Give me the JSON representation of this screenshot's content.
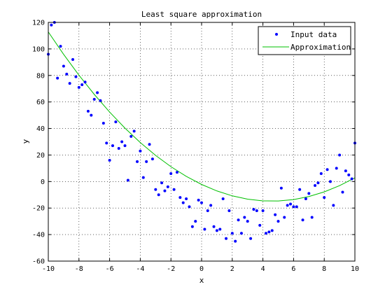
{
  "chart_data": {
    "type": "scatter",
    "title": "Least square approximation",
    "xlabel": "x",
    "ylabel": "y",
    "xlim": [
      -10,
      10
    ],
    "ylim": [
      -60,
      120
    ],
    "xticks": [
      -10,
      -8,
      -6,
      -4,
      -2,
      0,
      2,
      4,
      6,
      8,
      10
    ],
    "yticks": [
      -60,
      -40,
      -20,
      0,
      20,
      40,
      60,
      80,
      100,
      120
    ],
    "grid": true,
    "legend_position": "top-right",
    "series": [
      {
        "name": "Input data",
        "kind": "points",
        "color": "#0000ff",
        "marker": "dot",
        "points": [
          [
            -10.0,
            96
          ],
          [
            -9.8,
            118
          ],
          [
            -9.6,
            120
          ],
          [
            -9.4,
            78
          ],
          [
            -9.2,
            102
          ],
          [
            -9.0,
            87
          ],
          [
            -8.8,
            81
          ],
          [
            -8.6,
            74
          ],
          [
            -8.4,
            92
          ],
          [
            -8.2,
            79
          ],
          [
            -8.0,
            71
          ],
          [
            -7.8,
            73
          ],
          [
            -7.6,
            75
          ],
          [
            -7.4,
            53
          ],
          [
            -7.2,
            50
          ],
          [
            -7.0,
            62
          ],
          [
            -6.8,
            67
          ],
          [
            -6.6,
            61
          ],
          [
            -6.4,
            44
          ],
          [
            -6.2,
            29
          ],
          [
            -6.0,
            16
          ],
          [
            -5.8,
            27
          ],
          [
            -5.6,
            45
          ],
          [
            -5.4,
            25
          ],
          [
            -5.2,
            30
          ],
          [
            -5.0,
            27
          ],
          [
            -4.8,
            1
          ],
          [
            -4.6,
            34
          ],
          [
            -4.4,
            38
          ],
          [
            -4.2,
            15
          ],
          [
            -4.0,
            23
          ],
          [
            -3.8,
            3
          ],
          [
            -3.6,
            15
          ],
          [
            -3.4,
            28
          ],
          [
            -3.2,
            17
          ],
          [
            -3.0,
            -6
          ],
          [
            -2.8,
            -10
          ],
          [
            -2.6,
            -1
          ],
          [
            -2.4,
            -7
          ],
          [
            -2.2,
            -4
          ],
          [
            -2.0,
            6
          ],
          [
            -1.8,
            -6
          ],
          [
            -1.6,
            7
          ],
          [
            -1.4,
            -12
          ],
          [
            -1.2,
            -16
          ],
          [
            -1.0,
            -13
          ],
          [
            -0.8,
            -19
          ],
          [
            -0.6,
            -34
          ],
          [
            -0.4,
            -30
          ],
          [
            -0.2,
            -14
          ],
          [
            0.0,
            -16
          ],
          [
            0.2,
            -36
          ],
          [
            0.4,
            -22
          ],
          [
            0.6,
            -18
          ],
          [
            0.8,
            -34
          ],
          [
            1.0,
            -37
          ],
          [
            1.2,
            -36
          ],
          [
            1.4,
            -13
          ],
          [
            1.6,
            -43
          ],
          [
            1.8,
            -22
          ],
          [
            2.0,
            -39
          ],
          [
            2.2,
            -45
          ],
          [
            2.4,
            -29
          ],
          [
            2.6,
            -39
          ],
          [
            2.8,
            -27
          ],
          [
            3.0,
            -30
          ],
          [
            3.2,
            -43
          ],
          [
            3.4,
            -21
          ],
          [
            3.6,
            -22
          ],
          [
            3.8,
            -33
          ],
          [
            4.0,
            -22
          ],
          [
            4.2,
            -39
          ],
          [
            4.4,
            -38
          ],
          [
            4.6,
            -37
          ],
          [
            4.8,
            -25
          ],
          [
            5.0,
            -30
          ],
          [
            5.2,
            -5
          ],
          [
            5.4,
            -27
          ],
          [
            5.6,
            -18
          ],
          [
            5.8,
            -17
          ],
          [
            6.0,
            -19
          ],
          [
            6.2,
            -19
          ],
          [
            6.4,
            -6
          ],
          [
            6.6,
            -29
          ],
          [
            6.8,
            -13
          ],
          [
            7.0,
            -9
          ],
          [
            7.2,
            -27
          ],
          [
            7.4,
            -3
          ],
          [
            7.6,
            -1
          ],
          [
            7.8,
            6
          ],
          [
            8.0,
            -12
          ],
          [
            8.2,
            9
          ],
          [
            8.4,
            0
          ],
          [
            8.6,
            -18
          ],
          [
            8.8,
            10
          ],
          [
            9.0,
            20
          ],
          [
            9.2,
            -8
          ],
          [
            9.4,
            8
          ],
          [
            9.6,
            5
          ],
          [
            9.8,
            2
          ],
          [
            10.0,
            29
          ]
        ]
      },
      {
        "name": "Approximation",
        "kind": "line",
        "color": "#00c000",
        "points": [
          [
            -10,
            112.8
          ],
          [
            -9,
            95.9
          ],
          [
            -8,
            80.2
          ],
          [
            -7,
            65.7
          ],
          [
            -6,
            52.4
          ],
          [
            -5,
            40.3
          ],
          [
            -4,
            29.4
          ],
          [
            -3,
            19.7
          ],
          [
            -2,
            11.2
          ],
          [
            -1,
            3.9
          ],
          [
            0,
            -2.2
          ],
          [
            1,
            -7.1
          ],
          [
            2,
            -10.8
          ],
          [
            3,
            -13.3
          ],
          [
            4,
            -14.6
          ],
          [
            5,
            -14.7
          ],
          [
            6,
            -13.6
          ],
          [
            7,
            -11.3
          ],
          [
            8,
            -7.8
          ],
          [
            9,
            -3.1
          ],
          [
            10,
            2.8
          ]
        ]
      }
    ]
  }
}
